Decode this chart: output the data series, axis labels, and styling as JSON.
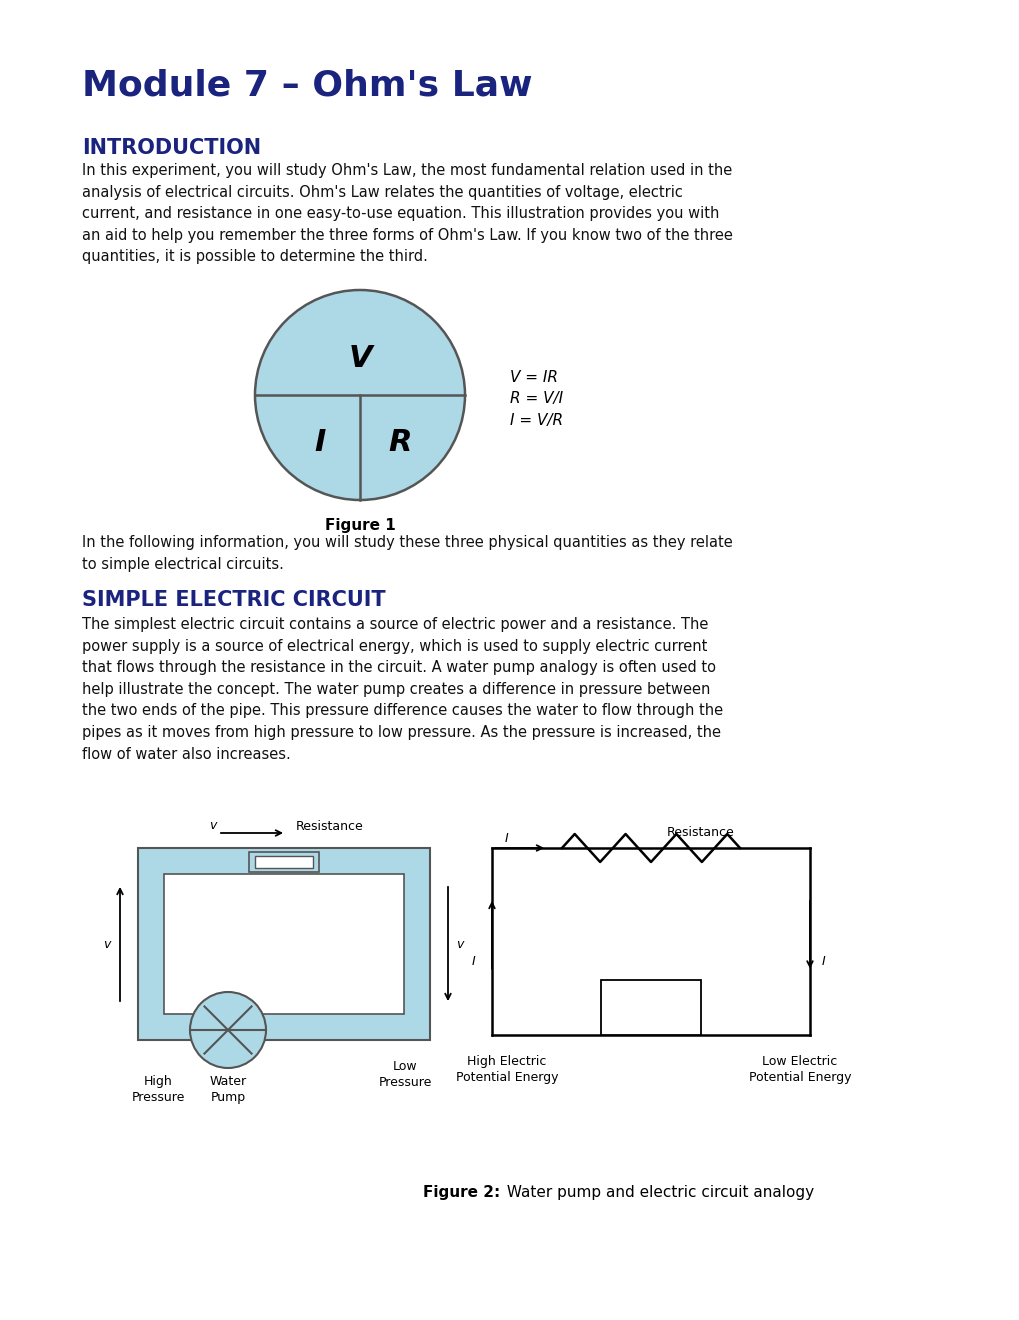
{
  "title": "Module 7 – Ohm's Law",
  "title_color": "#1a237e",
  "title_fontsize": 26,
  "section1_title": "INTRODUCTION",
  "section1_color": "#1a237e",
  "section1_fontsize": 15,
  "section1_text": "In this experiment, you will study Ohm's Law, the most fundamental relation used in the\nanalysis of electrical circuits. Ohm's Law relates the quantities of voltage, electric\ncurrent, and resistance in one easy-to-use equation. This illustration provides you with\nan aid to help you remember the three forms of Ohm's Law. If you know two of the three\nquantities, it is possible to determine the third.",
  "figure1_caption": "Figure 1",
  "ohm_equations": [
    "V = IR",
    "R = V/I",
    "I = V/R"
  ],
  "between_text": "In the following information, you will study these three physical quantities as they relate\nto simple electrical circuits.",
  "section2_title": "SIMPLE ELECTRIC CIRCUIT",
  "section2_color": "#1a237e",
  "section2_fontsize": 15,
  "section2_text": "The simplest electric circuit contains a source of electric power and a resistance. The\npower supply is a source of electrical energy, which is used to supply electric current\nthat flows through the resistance in the circuit. A water pump analogy is often used to\nhelp illustrate the concept. The water pump creates a difference in pressure between\nthe two ends of the pipe. This pressure difference causes the water to flow through the\npipes as it moves from high pressure to low pressure. As the pressure is increased, the\nflow of water also increases.",
  "figure2_caption_bold": "Figure 2:",
  "figure2_caption_normal": " Water pump and electric circuit analogy",
  "circle_fill": "#add8e6",
  "circle_edge": "#555555",
  "bg_color": "#ffffff",
  "text_color": "#111111",
  "body_fontsize": 10.5
}
